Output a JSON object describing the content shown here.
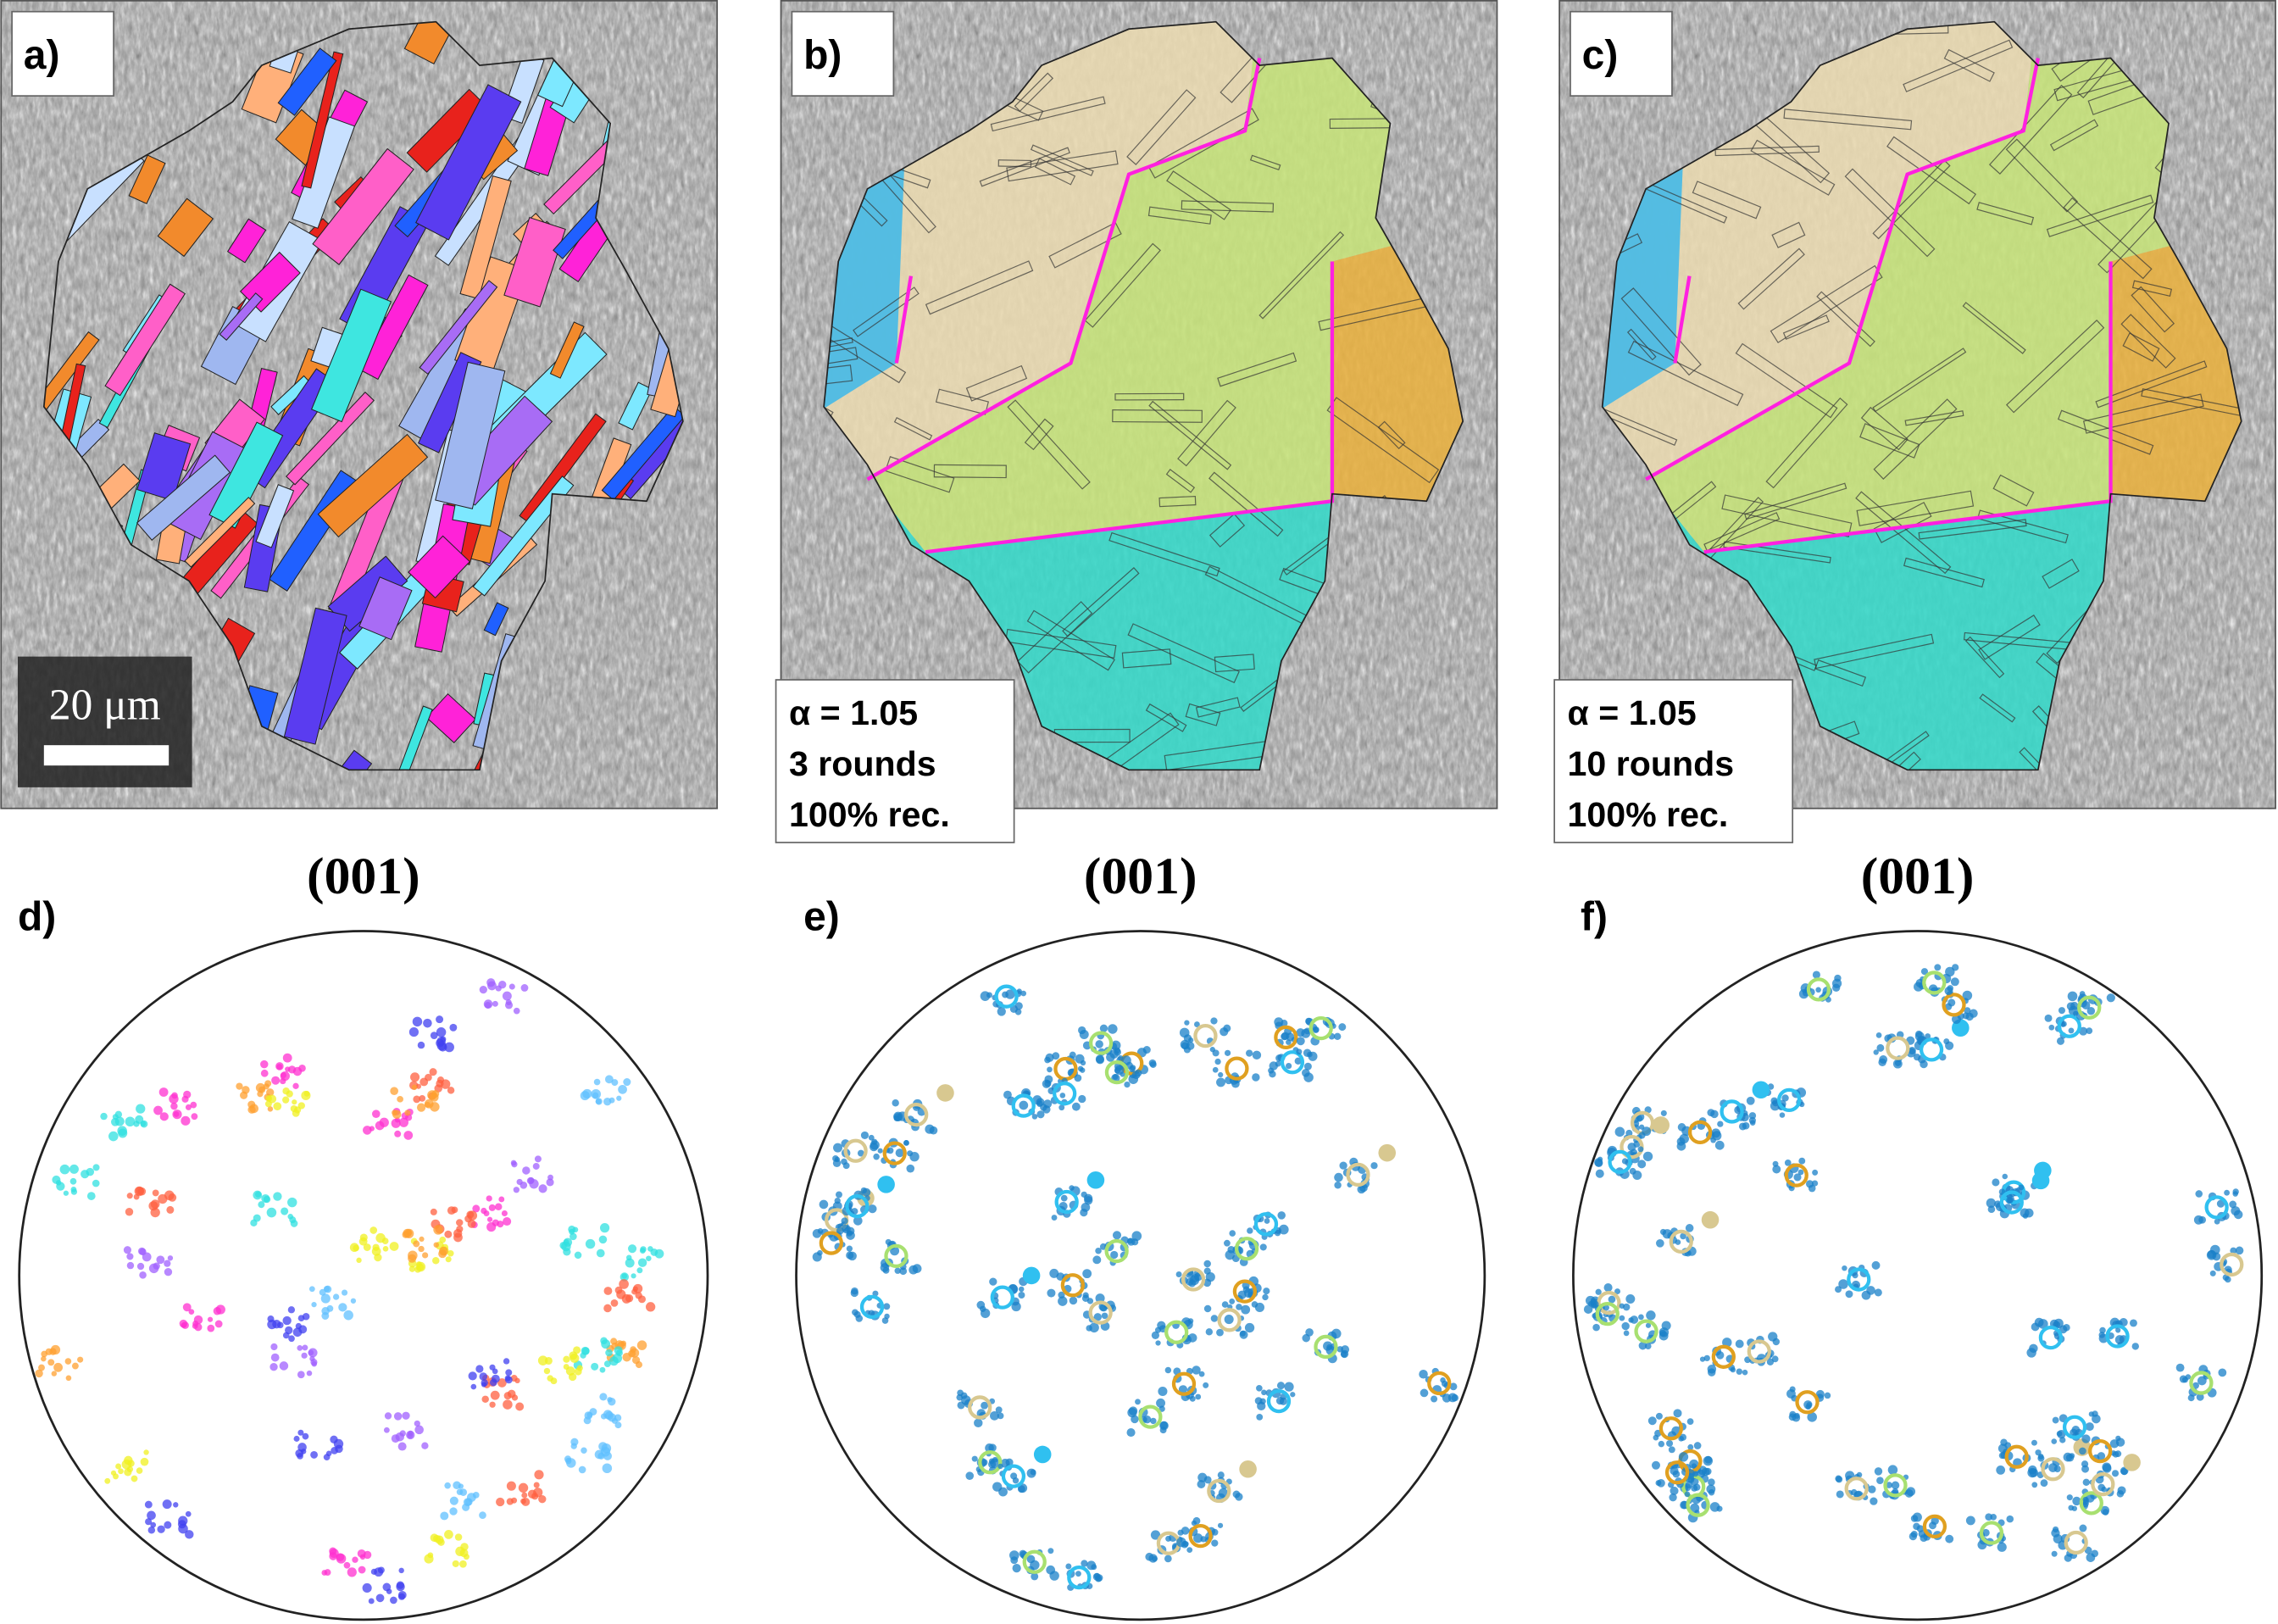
{
  "panels": [
    {
      "label": "a)",
      "scale_bar": "20 μm"
    },
    {
      "label": "b)",
      "annotation": [
        "α = 1.05",
        "3 rounds",
        "100% rec."
      ]
    },
    {
      "label": "c)",
      "annotation": [
        "α = 1.05",
        "10 rounds",
        "100% rec."
      ]
    }
  ],
  "pole_figures": [
    {
      "label": "d)",
      "title": "(001)"
    },
    {
      "label": "e)",
      "title": "(001)"
    },
    {
      "label": "f)",
      "title": "(001)"
    }
  ]
}
